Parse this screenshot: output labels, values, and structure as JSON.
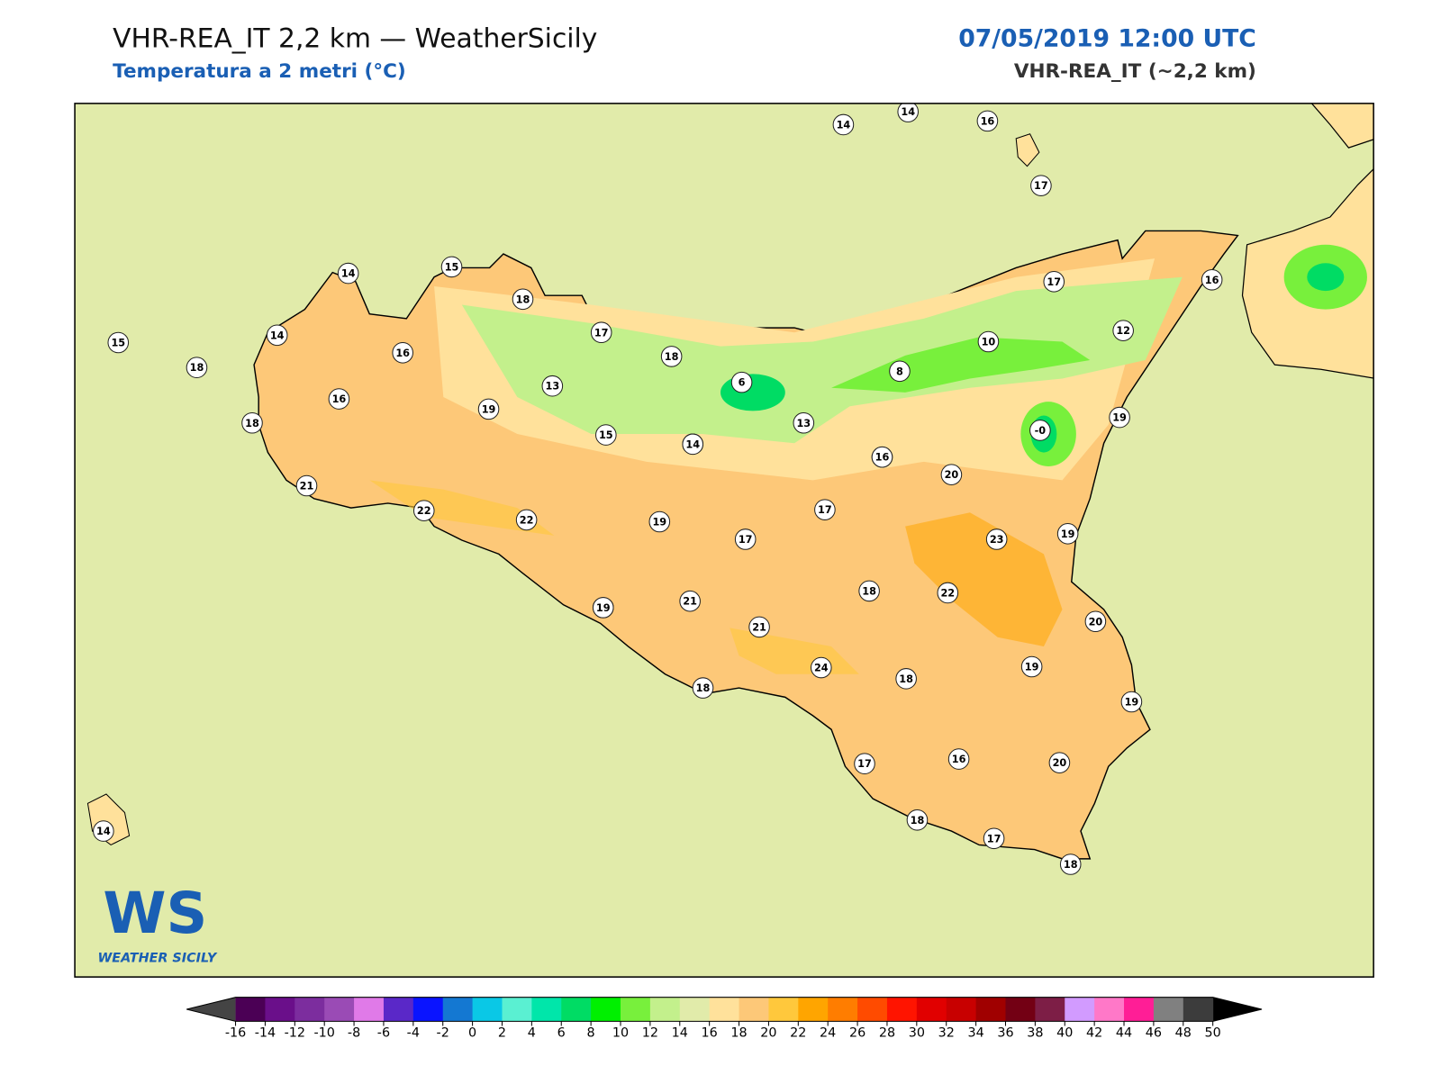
{
  "header": {
    "title": "VHR-REA_IT 2,2 km — WeatherSicily",
    "subtitle": "Temperatura a 2 metri (°C)",
    "date": "07/05/2019 12:00 UTC",
    "model": "VHR-REA_IT (~2,2 km)"
  },
  "logo": {
    "mark": "WS",
    "name": "WEATHER SICILY"
  },
  "stations": [
    "14",
    "14",
    "16",
    "17",
    "14",
    "15",
    "18",
    "17",
    "18",
    "16",
    "17",
    "12",
    "16",
    "14",
    "18",
    "15",
    "18",
    "16",
    "13",
    "19",
    "6",
    "8",
    "10",
    "13",
    "-0",
    "19",
    "18",
    "17",
    "15",
    "14",
    "16",
    "20",
    "21",
    "22",
    "22",
    "19",
    "17",
    "17",
    "19",
    "19",
    "23",
    "18",
    "22",
    "20",
    "21",
    "19",
    "21",
    "24",
    "18",
    "19",
    "18",
    "19",
    "16",
    "20",
    "17",
    "14",
    "18",
    "17",
    "18"
  ],
  "colorbar": {
    "ticks": [
      -16,
      -14,
      -12,
      -10,
      -8,
      -6,
      -4,
      -2,
      0,
      2,
      4,
      6,
      8,
      10,
      12,
      14,
      16,
      18,
      20,
      22,
      24,
      26,
      28,
      30,
      32,
      34,
      36,
      38,
      40,
      42,
      44,
      46,
      48,
      50
    ],
    "colors": [
      "#4b0055",
      "#6a0f8a",
      "#7c2d9e",
      "#9a4bb5",
      "#e07ae8",
      "#5a28c8",
      "#0a14ff",
      "#1478d2",
      "#0ac8e6",
      "#5af0d2",
      "#00e6aa",
      "#00dc64",
      "#00f000",
      "#78f03c",
      "#c3f08c",
      "#e1ebaa",
      "#ffe19b",
      "#fdc878",
      "#ffc83c",
      "#ffa500",
      "#ff7d00",
      "#ff4b00",
      "#ff1400",
      "#e10000",
      "#c80000",
      "#a00000",
      "#730014",
      "#7d1e46",
      "#d29bff",
      "#ff78c8",
      "#ff1e96",
      "#808080",
      "#3c3c3c"
    ],
    "under_color": "#444444",
    "over_color": "#000000"
  }
}
